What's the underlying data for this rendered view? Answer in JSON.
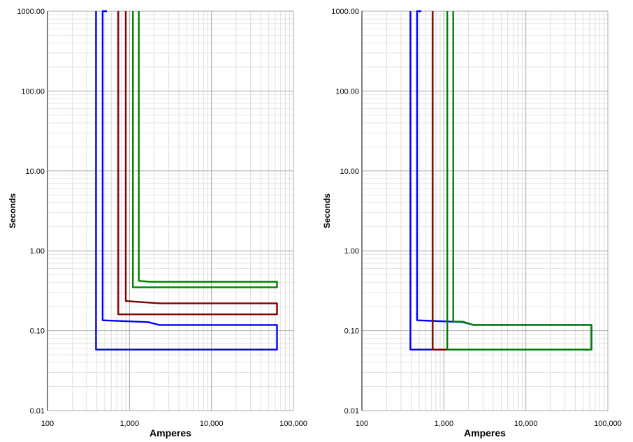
{
  "chart_data": [
    {
      "type": "line",
      "xscale": "log",
      "yscale": "log",
      "xlim": [
        100,
        100000
      ],
      "ylim": [
        0.01,
        1000
      ],
      "xlabel": "Amperes",
      "ylabel": "Seconds",
      "x_tick_labels": [
        "100",
        "1,000",
        "10,000",
        "100,000"
      ],
      "y_tick_labels": [
        "0.01",
        "0.10",
        "1.00",
        "10.00",
        "100.00",
        "1000.00"
      ],
      "grid": true,
      "series": [
        {
          "color": "#0000ff",
          "points": [
            [
              390,
              1000
            ],
            [
              390,
              0.058
            ],
            [
              63000,
              0.058
            ],
            [
              63000,
              0.118
            ],
            [
              2300,
              0.118
            ],
            [
              1700,
              0.128
            ],
            [
              470,
              0.135
            ],
            [
              470,
              1000
            ],
            [
              530,
              1000
            ]
          ]
        },
        {
          "color": "#800000",
          "points": [
            [
              730,
              1000
            ],
            [
              730,
              0.16
            ],
            [
              63000,
              0.16
            ],
            [
              63000,
              0.22
            ],
            [
              2300,
              0.22
            ],
            [
              900,
              0.235
            ],
            [
              900,
              1000
            ]
          ]
        },
        {
          "color": "#008000",
          "points": [
            [
              1100,
              1000
            ],
            [
              1100,
              0.35
            ],
            [
              63000,
              0.35
            ],
            [
              63000,
              0.41
            ],
            [
              1800,
              0.41
            ],
            [
              1300,
              0.42
            ],
            [
              1300,
              1000
            ]
          ]
        }
      ]
    },
    {
      "type": "line",
      "xscale": "log",
      "yscale": "log",
      "xlim": [
        100,
        100000
      ],
      "ylim": [
        0.01,
        1000
      ],
      "xlabel": "Amperes",
      "ylabel": "Seconds",
      "x_tick_labels": [
        "100",
        "1,000",
        "10,000",
        "100,000"
      ],
      "y_tick_labels": [
        "0.01",
        "0.10",
        "1.00",
        "10.00",
        "100.00",
        "1000.00"
      ],
      "grid": true,
      "series": [
        {
          "color": "#0000ff",
          "points": [
            [
              390,
              1000
            ],
            [
              390,
              0.058
            ],
            [
              1100,
              0.058
            ],
            [
              63000,
              0.058
            ],
            [
              63000,
              0.118
            ],
            [
              2300,
              0.118
            ],
            [
              1700,
              0.128
            ],
            [
              470,
              0.135
            ],
            [
              470,
              1000
            ],
            [
              530,
              1000
            ]
          ]
        },
        {
          "color": "#800000",
          "points": [
            [
              730,
              1000
            ],
            [
              730,
              0.058
            ],
            [
              1100,
              0.058
            ]
          ]
        },
        {
          "color": "#008000",
          "points": [
            [
              1100,
              1000
            ],
            [
              1100,
              0.058
            ],
            [
              63000,
              0.058
            ],
            [
              63000,
              0.118
            ],
            [
              2300,
              0.118
            ],
            [
              1700,
              0.13
            ],
            [
              1300,
              0.13
            ],
            [
              1300,
              1000
            ]
          ]
        }
      ]
    }
  ]
}
